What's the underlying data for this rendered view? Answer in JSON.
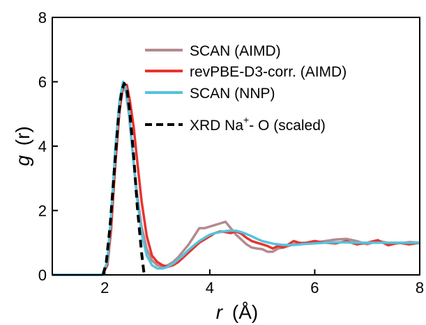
{
  "chart_data": {
    "type": "line",
    "xlabel": {
      "var": "r",
      "unit": "(Å)"
    },
    "ylabel": {
      "var": "g",
      "arg": "(r)"
    },
    "xlim": [
      1,
      8
    ],
    "ylim": [
      0,
      8
    ],
    "x_ticks": [
      "2",
      "4",
      "6",
      "8"
    ],
    "y_ticks": [
      "0",
      "2",
      "4",
      "6",
      "8"
    ],
    "grid": false,
    "legend_placement": "top-right",
    "series": [
      {
        "name": "SCAN (AIMD)",
        "color": "#b48a8e",
        "dash": "solid",
        "x": [
          1.0,
          1.95,
          2.05,
          2.12,
          2.2,
          2.28,
          2.35,
          2.4,
          2.46,
          2.52,
          2.6,
          2.7,
          2.8,
          2.9,
          3.0,
          3.1,
          3.2,
          3.3,
          3.4,
          3.5,
          3.6,
          3.7,
          3.8,
          3.9,
          4.0,
          4.1,
          4.2,
          4.3,
          4.4,
          4.5,
          4.6,
          4.7,
          4.8,
          4.9,
          5.0,
          5.1,
          5.2,
          5.3,
          5.4,
          5.5,
          5.6,
          5.7,
          5.8,
          5.9,
          6.0,
          6.2,
          6.4,
          6.6,
          6.8,
          7.0,
          7.2,
          7.4,
          7.6,
          7.8,
          8.0
        ],
        "y": [
          0.0,
          0.0,
          0.4,
          1.8,
          3.8,
          5.3,
          5.9,
          5.7,
          5.0,
          4.0,
          2.7,
          1.5,
          0.8,
          0.45,
          0.3,
          0.25,
          0.3,
          0.4,
          0.55,
          0.75,
          0.95,
          1.2,
          1.45,
          1.45,
          1.5,
          1.55,
          1.6,
          1.65,
          1.45,
          1.25,
          1.1,
          0.95,
          0.85,
          0.82,
          0.8,
          0.72,
          0.72,
          0.82,
          0.85,
          0.9,
          0.95,
          0.98,
          1.0,
          0.98,
          1.0,
          1.05,
          1.1,
          1.12,
          1.05,
          0.95,
          1.05,
          1.0,
          0.98,
          1.02,
          1.0
        ]
      },
      {
        "name": "revPBE-D3-corr. (AIMD)",
        "color": "#e8342e",
        "dash": "solid",
        "x": [
          1.0,
          1.95,
          2.05,
          2.12,
          2.2,
          2.28,
          2.35,
          2.42,
          2.48,
          2.55,
          2.62,
          2.7,
          2.8,
          2.9,
          3.0,
          3.1,
          3.2,
          3.3,
          3.4,
          3.5,
          3.6,
          3.7,
          3.8,
          3.9,
          4.0,
          4.1,
          4.2,
          4.3,
          4.4,
          4.5,
          4.6,
          4.7,
          4.8,
          4.9,
          5.0,
          5.1,
          5.2,
          5.3,
          5.4,
          5.5,
          5.6,
          5.7,
          5.8,
          5.9,
          6.0,
          6.2,
          6.4,
          6.6,
          6.8,
          7.0,
          7.2,
          7.4,
          7.6,
          7.8,
          8.0
        ],
        "y": [
          0.0,
          0.0,
          0.3,
          1.4,
          3.4,
          5.1,
          5.85,
          5.9,
          5.4,
          4.6,
          3.5,
          2.3,
          1.2,
          0.6,
          0.4,
          0.3,
          0.25,
          0.3,
          0.4,
          0.55,
          0.7,
          0.85,
          1.0,
          1.1,
          1.2,
          1.3,
          1.35,
          1.33,
          1.3,
          1.35,
          1.28,
          1.15,
          1.05,
          1.0,
          0.95,
          0.9,
          0.82,
          0.9,
          0.85,
          0.95,
          1.05,
          1.0,
          0.98,
          1.02,
          1.05,
          1.0,
          0.98,
          1.05,
          0.95,
          1.0,
          1.08,
          0.92,
          1.0,
          0.95,
          1.0
        ]
      },
      {
        "name": "SCAN (NNP)",
        "color": "#55c3dc",
        "dash": "solid",
        "x": [
          1.0,
          1.95,
          2.05,
          2.12,
          2.2,
          2.28,
          2.35,
          2.4,
          2.46,
          2.52,
          2.6,
          2.7,
          2.8,
          2.9,
          3.0,
          3.1,
          3.2,
          3.3,
          3.4,
          3.5,
          3.6,
          3.7,
          3.8,
          3.9,
          4.0,
          4.1,
          4.2,
          4.3,
          4.4,
          4.5,
          4.6,
          4.7,
          4.8,
          4.9,
          5.0,
          5.2,
          5.4,
          5.6,
          5.8,
          6.0,
          6.2,
          6.4,
          6.6,
          6.8,
          7.0,
          7.2,
          7.4,
          7.6,
          7.8,
          8.0
        ],
        "y": [
          0.0,
          0.0,
          0.4,
          1.8,
          3.9,
          5.4,
          6.0,
          5.8,
          5.1,
          4.0,
          2.6,
          1.3,
          0.6,
          0.3,
          0.2,
          0.2,
          0.25,
          0.35,
          0.48,
          0.62,
          0.78,
          0.92,
          1.05,
          1.15,
          1.25,
          1.3,
          1.33,
          1.36,
          1.38,
          1.37,
          1.33,
          1.27,
          1.2,
          1.12,
          1.05,
          0.97,
          0.93,
          0.93,
          0.96,
          0.98,
          1.0,
          1.01,
          1.01,
          1.0,
          1.0,
          1.0,
          1.0,
          1.0,
          1.0,
          1.0
        ]
      },
      {
        "name": "XRD Na+- O (scaled)",
        "color": "#000000",
        "dash": "dashed",
        "x": [
          1.97,
          2.03,
          2.1,
          2.18,
          2.26,
          2.32,
          2.37,
          2.42,
          2.48,
          2.55,
          2.62,
          2.7,
          2.75
        ],
        "y": [
          0.0,
          0.4,
          1.5,
          3.2,
          4.9,
          5.7,
          5.95,
          5.8,
          5.0,
          3.7,
          2.1,
          0.7,
          0.0
        ]
      }
    ]
  }
}
